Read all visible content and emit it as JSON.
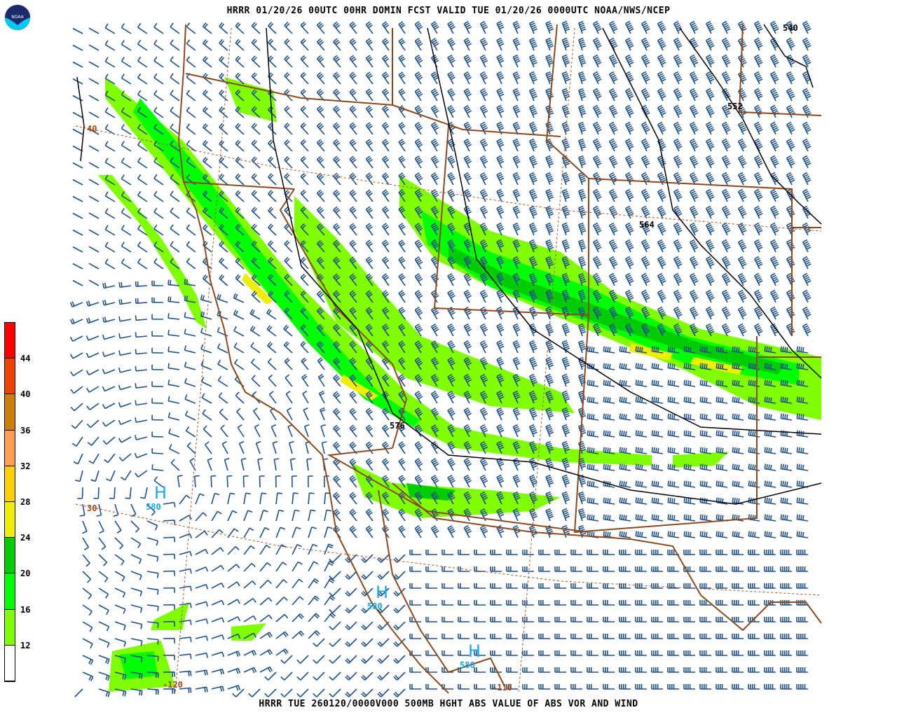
{
  "header": {
    "title": "HRRR 01/20/26 00UTC  00HR DOMIN  FCST VALID TUE 01/20/26 0000UTC  NOAA/NWS/NCEP"
  },
  "footer": {
    "caption": "HRRR TUE 260120/0000V000 500MB HGHT ABS VALUE OF ABS VOR AND WIND"
  },
  "logo": {
    "text": "NOAA"
  },
  "legend": {
    "ticks": [
      "44",
      "40",
      "36",
      "32",
      "28",
      "24",
      "20",
      "16",
      "12"
    ],
    "colors": [
      "#ff0000",
      "#ee4400",
      "#cc8000",
      "#ffa050",
      "#ffd000",
      "#eeee00",
      "#00cc00",
      "#00ff00",
      "#80ff00",
      "#ffffff"
    ]
  },
  "map": {
    "contour_labels": [
      "540",
      "552",
      "564",
      "576"
    ],
    "highs": [
      {
        "symbol": "H",
        "value": "580"
      },
      {
        "symbol": "H",
        "value": "580"
      },
      {
        "symbol": "H",
        "value": "580"
      }
    ],
    "lat_labels": [
      "40",
      "30"
    ],
    "lon_labels": [
      "-120",
      "-110"
    ],
    "colors": {
      "barb": "#1f5088",
      "border": "#8b4a1e",
      "contour": "#000000",
      "high": "#1aa8e8"
    }
  }
}
